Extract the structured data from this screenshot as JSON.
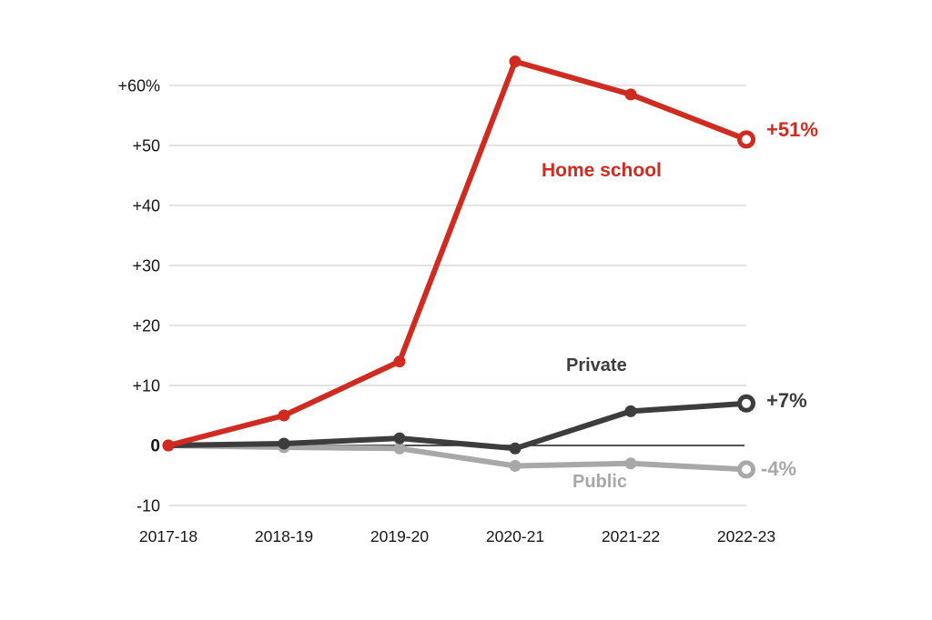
{
  "chart_data": {
    "type": "line",
    "title": "",
    "x_axis": {
      "categories": [
        "2017-18",
        "2018-19",
        "2019-20",
        "2020-21",
        "2021-22",
        "2022-23"
      ]
    },
    "y_axis": {
      "unit": "percent change",
      "range": [
        -10,
        65
      ],
      "ticks": [
        {
          "value": 60,
          "label": "+60%",
          "bold": false
        },
        {
          "value": 50,
          "label": "+50",
          "bold": false
        },
        {
          "value": 40,
          "label": "+40",
          "bold": false
        },
        {
          "value": 30,
          "label": "+30",
          "bold": false
        },
        {
          "value": 20,
          "label": "+20",
          "bold": false
        },
        {
          "value": 10,
          "label": "+10",
          "bold": false
        },
        {
          "value": 0,
          "label": "0",
          "bold": true
        },
        {
          "value": -10,
          "label": "-10",
          "bold": false
        }
      ]
    },
    "grid": true,
    "zero_line": true,
    "legend_position": "inline-labels",
    "series": [
      {
        "name": "Home school",
        "color": "#cf2b20",
        "values": [
          0,
          5,
          14,
          64,
          58.5,
          51
        ],
        "end_label": "+51%",
        "end_point_style": "open-circle"
      },
      {
        "name": "Private",
        "color": "#3d3d3d",
        "values": [
          0,
          0.3,
          1.2,
          -0.5,
          5.7,
          7
        ],
        "end_label": "+7%",
        "end_point_style": "open-circle"
      },
      {
        "name": "Public",
        "color": "#a8a8a8",
        "values": [
          0,
          -0.3,
          -0.5,
          -3.4,
          -3,
          -4
        ],
        "end_label": "-4%",
        "end_point_style": "open-circle"
      }
    ],
    "style": {
      "gridline_color": "#e4e4e4",
      "zero_line_color": "#1a1a1a",
      "tick_label_color": "#161616",
      "background": "#ffffff"
    }
  }
}
